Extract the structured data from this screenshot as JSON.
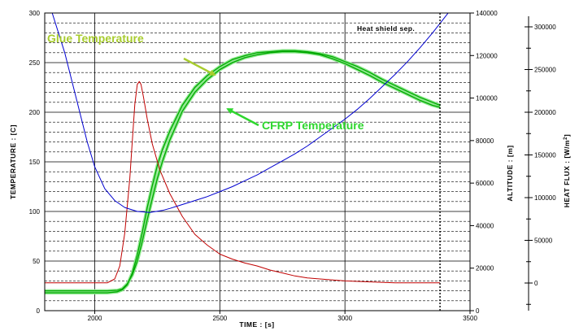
{
  "chart_data": {
    "type": "line",
    "xlabel": "TIME : [s]",
    "xlim": [
      1800,
      3500
    ],
    "x_ticks": [
      "2000",
      "2500",
      "3000",
      "3500"
    ],
    "y_left": {
      "label": "TEMPERATURE : [C]",
      "lim": [
        0,
        300
      ],
      "ticks": [
        "0",
        "50",
        "100",
        "150",
        "200",
        "250",
        "300"
      ]
    },
    "y_right_altitude": {
      "label": "ALTITUDE : [m]",
      "lim": [
        0,
        140000
      ],
      "ticks": [
        "0",
        "20000",
        "40000",
        "60000",
        "80000",
        "100000",
        "120000",
        "140000"
      ]
    },
    "y_right_heatflux": {
      "label": "HEAT FLUX : [W/m",
      "label_sup": "2",
      "label_end": "]",
      "ticks": [
        "0",
        "50000",
        "100000",
        "150000",
        "200000",
        "250000",
        "300000"
      ]
    },
    "grid": true,
    "annotations": {
      "glue": "Glue Temperature",
      "cfrp": "CFRP Temperature",
      "heat_shield": "Heat shield sep.",
      "heat_shield_time": 3380
    },
    "series": [
      {
        "name": "Glue Temperature",
        "color": "#00a800",
        "axis": "temperature",
        "points": [
          [
            1800,
            20
          ],
          [
            2050,
            20
          ],
          [
            2090,
            20.5
          ],
          [
            2110,
            22
          ],
          [
            2130,
            27
          ],
          [
            2150,
            36
          ],
          [
            2170,
            50
          ],
          [
            2190,
            70
          ],
          [
            2210,
            92
          ],
          [
            2230,
            113
          ],
          [
            2250,
            133
          ],
          [
            2270,
            150
          ],
          [
            2300,
            172
          ],
          [
            2350,
            201
          ],
          [
            2400,
            220
          ],
          [
            2450,
            233
          ],
          [
            2500,
            243
          ],
          [
            2550,
            250
          ],
          [
            2600,
            255
          ],
          [
            2650,
            258
          ],
          [
            2700,
            260
          ],
          [
            2750,
            261
          ],
          [
            2800,
            261
          ],
          [
            2850,
            260
          ],
          [
            2900,
            258
          ],
          [
            2950,
            254
          ],
          [
            3000,
            249
          ],
          [
            3050,
            243
          ],
          [
            3100,
            237
          ],
          [
            3150,
            230
          ],
          [
            3200,
            224
          ],
          [
            3250,
            218
          ],
          [
            3300,
            212
          ],
          [
            3350,
            207
          ],
          [
            3380,
            205
          ]
        ]
      },
      {
        "name": "CFRP Temperature",
        "color": "#00a800",
        "axis": "temperature",
        "points": [
          [
            1800,
            18
          ],
          [
            2050,
            18
          ],
          [
            2090,
            19
          ],
          [
            2110,
            21
          ],
          [
            2130,
            26
          ],
          [
            2150,
            38
          ],
          [
            2170,
            56
          ],
          [
            2190,
            79
          ],
          [
            2210,
            104
          ],
          [
            2230,
            126
          ],
          [
            2250,
            146
          ],
          [
            2270,
            162
          ],
          [
            2300,
            181
          ],
          [
            2350,
            207
          ],
          [
            2400,
            225
          ],
          [
            2450,
            237
          ],
          [
            2500,
            246
          ],
          [
            2550,
            253
          ],
          [
            2600,
            257
          ],
          [
            2650,
            260
          ],
          [
            2700,
            261
          ],
          [
            2750,
            262
          ],
          [
            2800,
            262
          ],
          [
            2850,
            261
          ],
          [
            2900,
            259
          ],
          [
            2950,
            256
          ],
          [
            3000,
            251
          ],
          [
            3050,
            246
          ],
          [
            3100,
            240
          ],
          [
            3150,
            233
          ],
          [
            3200,
            227
          ],
          [
            3250,
            221
          ],
          [
            3300,
            215
          ],
          [
            3350,
            210
          ],
          [
            3380,
            207
          ]
        ]
      },
      {
        "name": "Heat flux",
        "color": "#c00000",
        "axis": "temperature",
        "points": [
          [
            1800,
            28
          ],
          [
            2000,
            28
          ],
          [
            2050,
            28
          ],
          [
            2080,
            32
          ],
          [
            2100,
            45
          ],
          [
            2120,
            78
          ],
          [
            2140,
            133
          ],
          [
            2150,
            171
          ],
          [
            2160,
            208
          ],
          [
            2170,
            228
          ],
          [
            2178,
            231
          ],
          [
            2185,
            228
          ],
          [
            2195,
            215
          ],
          [
            2210,
            193
          ],
          [
            2230,
            168
          ],
          [
            2260,
            142
          ],
          [
            2300,
            118
          ],
          [
            2350,
            95
          ],
          [
            2400,
            77
          ],
          [
            2450,
            66
          ],
          [
            2500,
            57
          ],
          [
            2550,
            52
          ],
          [
            2600,
            48
          ],
          [
            2650,
            45
          ],
          [
            2700,
            41
          ],
          [
            2750,
            38
          ],
          [
            2800,
            35
          ],
          [
            2850,
            33
          ],
          [
            2900,
            32
          ],
          [
            3000,
            30
          ],
          [
            3100,
            29
          ],
          [
            3200,
            28
          ],
          [
            3380,
            28
          ]
        ]
      },
      {
        "name": "Altitude",
        "color": "#0000d0",
        "axis": "temperature",
        "points": [
          [
            1830,
            300
          ],
          [
            1880,
            260
          ],
          [
            1930,
            210
          ],
          [
            1970,
            170
          ],
          [
            2000,
            145
          ],
          [
            2040,
            123
          ],
          [
            2080,
            111
          ],
          [
            2120,
            104
          ],
          [
            2170,
            100
          ],
          [
            2220,
            99
          ],
          [
            2270,
            101
          ],
          [
            2300,
            103
          ],
          [
            2350,
            107
          ],
          [
            2400,
            111
          ],
          [
            2450,
            115
          ],
          [
            2500,
            120
          ],
          [
            2550,
            125
          ],
          [
            2600,
            131
          ],
          [
            2650,
            137
          ],
          [
            2700,
            144
          ],
          [
            2750,
            151
          ],
          [
            2800,
            158
          ],
          [
            2850,
            166
          ],
          [
            2900,
            175
          ],
          [
            2950,
            184
          ],
          [
            3000,
            193
          ],
          [
            3050,
            203
          ],
          [
            3100,
            214
          ],
          [
            3150,
            226
          ],
          [
            3200,
            238
          ],
          [
            3250,
            251
          ],
          [
            3300,
            265
          ],
          [
            3350,
            280
          ],
          [
            3400,
            296
          ],
          [
            3450,
            312
          ],
          [
            3500,
            329
          ]
        ]
      }
    ]
  }
}
